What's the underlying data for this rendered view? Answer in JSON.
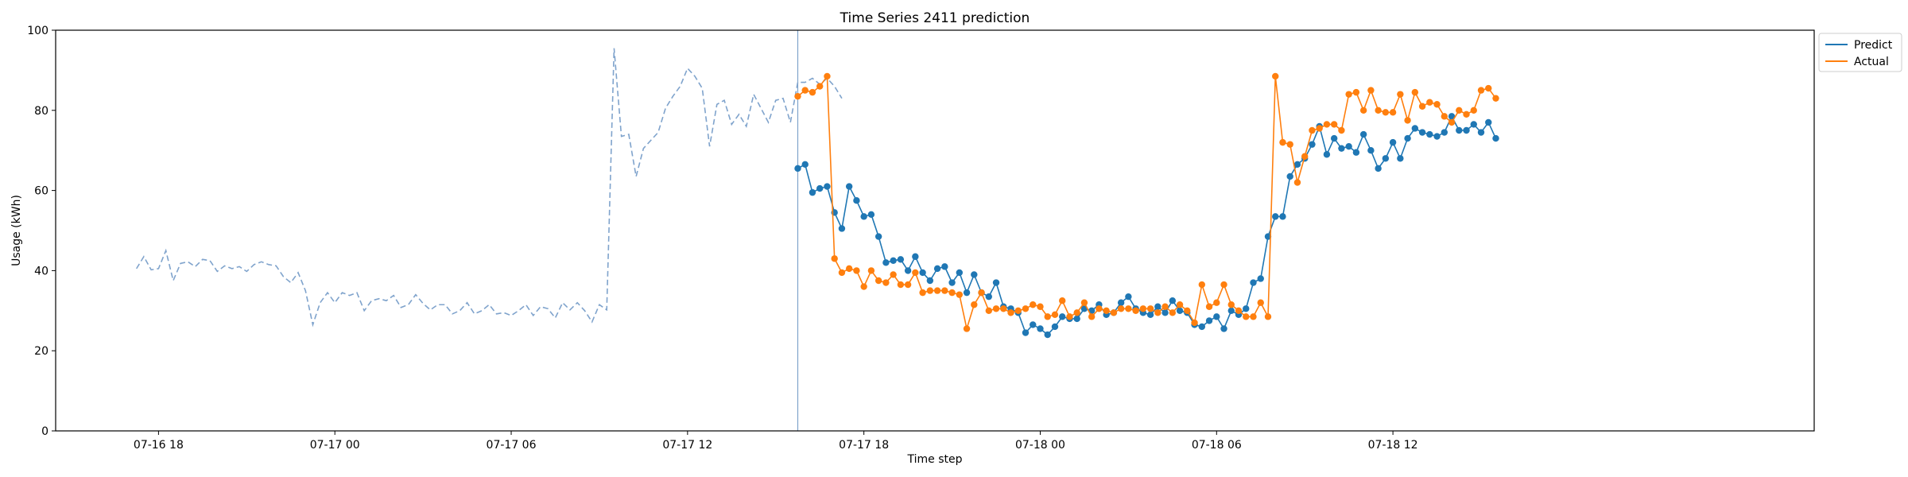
{
  "chart_data": {
    "type": "line",
    "title": "Time Series 2411 prediction",
    "xlabel": "Time step",
    "ylabel": "Usage (kWh)",
    "ylim": [
      0,
      100
    ],
    "yticks": [
      0,
      20,
      40,
      60,
      80,
      100
    ],
    "xlim": [
      "2024-07-16 14:30",
      "2024-07-19 02:20"
    ],
    "xticks": [
      "2024-07-16 18:00",
      "2024-07-17 00:00",
      "2024-07-17 06:00",
      "2024-07-17 12:00",
      "2024-07-17 18:00",
      "2024-07-18 00:00",
      "2024-07-18 06:00",
      "2024-07-18 12:00"
    ],
    "xtick_labels": [
      "07-16 18",
      "07-17 00",
      "07-17 06",
      "07-17 12",
      "07-17 18",
      "07-18 00",
      "07-18 06",
      "07-18 12"
    ],
    "split_time": "2024-07-17 15:45",
    "series_start": "2024-07-16 17:15",
    "series_step_minutes": 15,
    "forecast_start": "2024-07-17 15:45",
    "forecast_step_minutes": 15,
    "legend": {
      "placement": "upper right outside",
      "entries": [
        "Predict",
        "Actual"
      ]
    },
    "colors": {
      "predict": "#1f77b4",
      "actual": "#ff7f0e",
      "history": "#7fa3cc",
      "split_line": "#7fa3cc"
    },
    "series": [
      {
        "name": "History",
        "in_legend": false,
        "style": "dashed",
        "values": [
          40.5,
          43.5,
          40.2,
          40.5,
          45.0,
          37.5,
          41.8,
          42.2,
          41.0,
          42.8,
          42.5,
          39.8,
          41.2,
          40.5,
          41.0,
          39.8,
          41.5,
          42.2,
          41.5,
          41.2,
          38.5,
          37.0,
          39.5,
          35.0,
          26.5,
          32.0,
          34.5,
          32.0,
          34.5,
          33.8,
          34.5,
          30.0,
          32.5,
          33.0,
          32.5,
          33.8,
          30.8,
          31.5,
          34.0,
          31.8,
          30.2,
          31.5,
          31.5,
          29.2,
          30.0,
          32.0,
          29.2,
          30.0,
          31.5,
          29.2,
          29.5,
          28.8,
          30.0,
          31.5,
          28.8,
          31.0,
          30.5,
          28.2,
          32.0,
          30.2,
          32.0,
          30.0,
          27.2,
          31.5,
          30.2,
          95.5,
          73.5,
          74.0,
          63.5,
          70.5,
          72.5,
          74.5,
          80.5,
          83.5,
          86.0,
          90.5,
          88.5,
          85.5,
          71.0,
          81.5,
          82.5,
          76.5,
          79.0,
          76.0,
          84.0,
          80.5,
          77.0,
          82.5,
          83.0,
          77.0,
          87.0,
          87.0,
          88.0,
          86.5,
          88.0,
          86.0,
          83.0
        ]
      },
      {
        "name": "Predict",
        "values": [
          65.5,
          66.5,
          59.5,
          60.5,
          61.0,
          54.5,
          50.5,
          61.0,
          57.5,
          53.5,
          54.0,
          48.5,
          42.0,
          42.5,
          42.8,
          40.0,
          43.5,
          39.5,
          37.5,
          40.5,
          41.0,
          37.0,
          39.5,
          34.5,
          39.0,
          34.5,
          33.5,
          37.0,
          31.0,
          30.5,
          29.5,
          24.5,
          26.5,
          25.5,
          24.0,
          26.0,
          28.5,
          28.0,
          28.0,
          30.5,
          30.0,
          31.5,
          29.0,
          29.5,
          32.0,
          33.5,
          30.5,
          29.5,
          29.0,
          31.0,
          29.5,
          32.5,
          30.0,
          29.5,
          26.5,
          26.0,
          27.5,
          28.5,
          25.5,
          30.0,
          29.0,
          30.5,
          37.0,
          38.0,
          48.5,
          53.5,
          53.5,
          63.5,
          66.5,
          68.0,
          71.5,
          76.0,
          69.0,
          73.0,
          70.5,
          71.0,
          69.5,
          74.0,
          70.0,
          65.5,
          68.0,
          72.0,
          68.0,
          73.0,
          75.5,
          74.5,
          74.0,
          73.5,
          74.5,
          78.5,
          75.0,
          75.0,
          76.5,
          74.5,
          77.0,
          73.0
        ]
      },
      {
        "name": "Actual",
        "values": [
          83.5,
          85.0,
          84.5,
          86.0,
          88.5,
          43.0,
          39.5,
          40.5,
          40.0,
          36.0,
          40.0,
          37.5,
          37.0,
          39.0,
          36.5,
          36.5,
          39.5,
          34.5,
          35.0,
          35.0,
          35.0,
          34.5,
          34.0,
          25.5,
          31.5,
          34.5,
          30.0,
          30.5,
          30.5,
          29.5,
          30.0,
          30.5,
          31.5,
          31.0,
          28.5,
          29.0,
          32.5,
          28.5,
          29.5,
          32.0,
          28.5,
          30.5,
          30.0,
          29.5,
          30.5,
          30.5,
          30.0,
          30.5,
          30.5,
          29.5,
          31.0,
          29.5,
          31.5,
          30.0,
          27.0,
          36.5,
          31.0,
          32.0,
          36.5,
          31.5,
          30.0,
          28.5,
          28.5,
          32.0,
          28.5,
          88.5,
          72.0,
          71.5,
          62.0,
          68.5,
          75.0,
          75.5,
          76.5,
          76.5,
          75.0,
          84.0,
          84.5,
          80.0,
          85.0,
          80.0,
          79.5,
          79.5,
          84.0,
          77.5,
          84.5,
          81.0,
          82.0,
          81.5,
          78.5,
          77.0,
          80.0,
          79.0,
          80.0,
          85.0,
          85.5,
          83.0
        ]
      }
    ]
  }
}
